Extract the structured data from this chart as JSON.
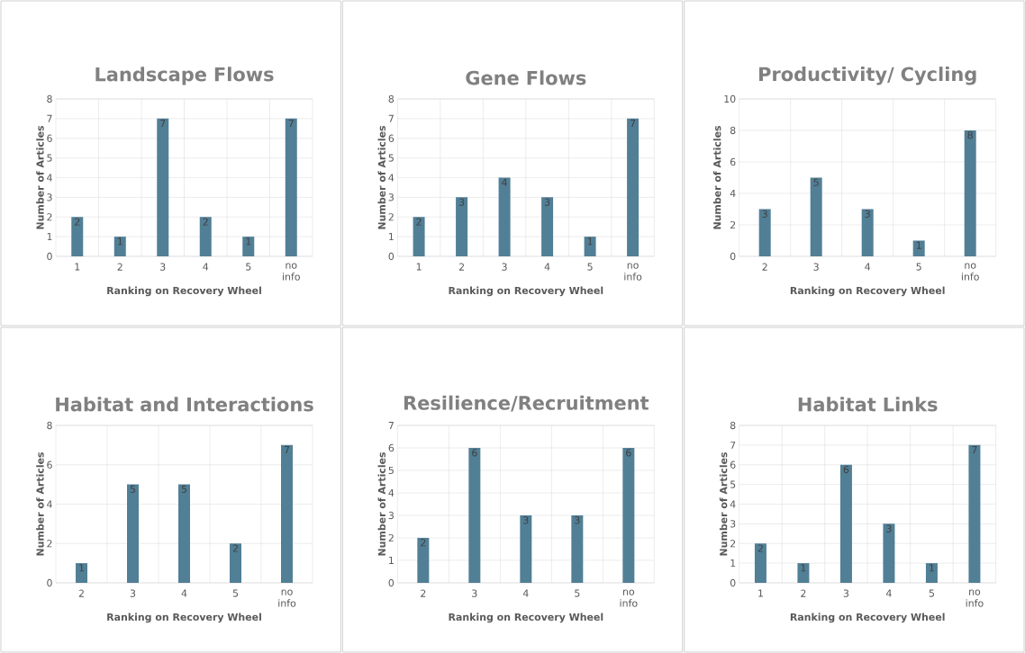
{
  "chart_data": [
    {
      "type": "bar",
      "title": "Landscape Flows",
      "xlabel": "Ranking on Recovery Wheel",
      "ylabel": "Number of Articles",
      "categories": [
        "1",
        "2",
        "3",
        "4",
        "5",
        "no info"
      ],
      "values": [
        2,
        1,
        7,
        2,
        1,
        7
      ],
      "color": "#517f96",
      "ylim": [
        0,
        8
      ],
      "yticks": [
        0,
        1,
        2,
        3,
        4,
        5,
        6,
        7,
        8
      ],
      "grid": true,
      "data_labels": true
    },
    {
      "type": "bar",
      "title": "Gene Flows",
      "xlabel": "Ranking on Recovery Wheel",
      "ylabel": "Number of Articles",
      "categories": [
        "1",
        "2",
        "3",
        "4",
        "5",
        "no info"
      ],
      "values": [
        2,
        3,
        4,
        3,
        1,
        7
      ],
      "color": "#517f96",
      "ylim": [
        0,
        8
      ],
      "yticks": [
        0,
        1,
        2,
        3,
        4,
        5,
        6,
        7,
        8
      ],
      "grid": true,
      "data_labels": true
    },
    {
      "type": "bar",
      "title": "Productivity/ Cycling",
      "xlabel": "Ranking on Recovery Wheel",
      "ylabel": "Number of Articles",
      "categories": [
        "2",
        "3",
        "4",
        "5",
        "no info"
      ],
      "values": [
        3,
        5,
        3,
        1,
        8
      ],
      "color": "#517f96",
      "ylim": [
        0,
        10
      ],
      "yticks": [
        0,
        2,
        4,
        6,
        8,
        10
      ],
      "grid": true,
      "data_labels": true
    },
    {
      "type": "bar",
      "title": "Habitat and Interactions",
      "xlabel": "Ranking on Recovery Wheel",
      "ylabel": "Number of Articles",
      "categories": [
        "2",
        "3",
        "4",
        "5",
        "no info"
      ],
      "values": [
        1,
        5,
        5,
        2,
        7
      ],
      "color": "#517f96",
      "ylim": [
        0,
        8
      ],
      "yticks": [
        0,
        2,
        4,
        6,
        8
      ],
      "grid": true,
      "data_labels": true
    },
    {
      "type": "bar",
      "title": "Resilience/Recruitment",
      "xlabel": "Ranking on Recovery Wheel",
      "ylabel": "Number of Articles",
      "categories": [
        "2",
        "3",
        "4",
        "5",
        "no info"
      ],
      "values": [
        2,
        6,
        3,
        3,
        6
      ],
      "color": "#517f96",
      "ylim": [
        0,
        7
      ],
      "yticks": [
        0,
        1,
        2,
        3,
        4,
        5,
        6,
        7
      ],
      "grid": true,
      "data_labels": true
    },
    {
      "type": "bar",
      "title": "Habitat Links",
      "xlabel": "Ranking on Recovery Wheel",
      "ylabel": "Number of Articles",
      "categories": [
        "1",
        "2",
        "3",
        "4",
        "5",
        "no info"
      ],
      "values": [
        2,
        1,
        6,
        3,
        1,
        7
      ],
      "color": "#517f96",
      "ylim": [
        0,
        8
      ],
      "yticks": [
        0,
        1,
        2,
        3,
        4,
        5,
        6,
        7,
        8
      ],
      "grid": true,
      "data_labels": true
    }
  ]
}
